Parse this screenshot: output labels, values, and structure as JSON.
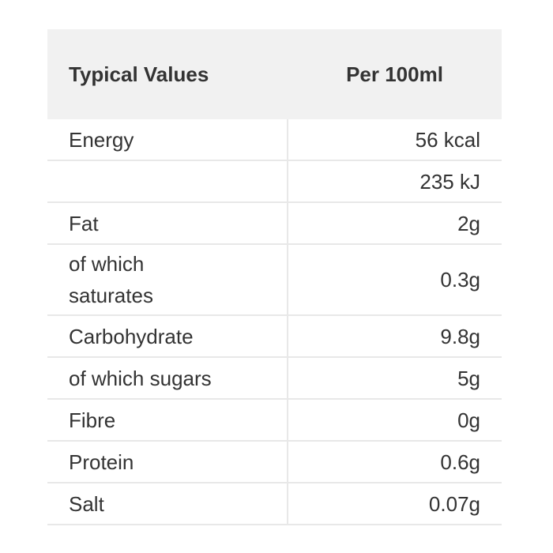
{
  "table": {
    "header": [
      "Typical Values",
      "Per 100ml"
    ],
    "rows": [
      {
        "label": "Energy",
        "value": "56 kcal"
      },
      {
        "value": "235 kJ"
      },
      {
        "label": "Fat",
        "value": "2g"
      },
      {
        "label": "of which saturates",
        "value": "0.3g"
      },
      {
        "label": "Carbohydrate",
        "value": "9.8g"
      },
      {
        "label": "of which sugars",
        "value": "5g"
      },
      {
        "label": "Fibre",
        "value": "0g"
      },
      {
        "label": "Protein",
        "value": "0.6g"
      },
      {
        "label": "Salt",
        "value": "0.07g"
      }
    ]
  }
}
